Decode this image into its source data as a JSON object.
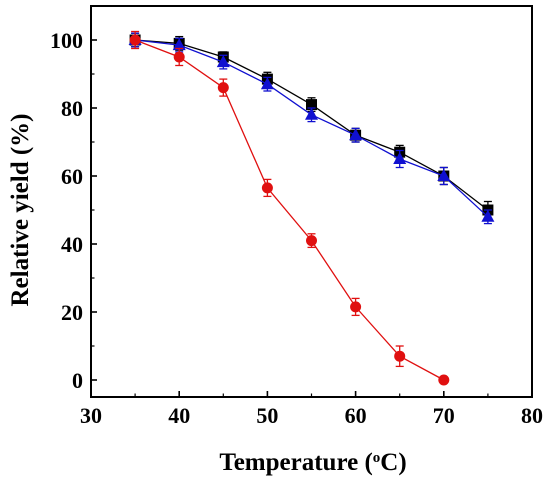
{
  "chart_data": {
    "type": "line",
    "xlabel": {
      "prefix": "Temperature (",
      "sup": "o",
      "suffix": "C)"
    },
    "ylabel": "Relative yield (%)",
    "xlim": [
      30,
      80
    ],
    "ylim": [
      -5,
      110
    ],
    "xticks": [
      30,
      40,
      50,
      60,
      70,
      80
    ],
    "yticks": [
      0,
      20,
      40,
      60,
      80,
      100
    ],
    "grid": false,
    "series": [
      {
        "marker": "square",
        "color": "#000000",
        "x": [
          35,
          40,
          45,
          50,
          55,
          60,
          65,
          70,
          75
        ],
        "y": [
          100,
          99,
          95,
          88.5,
          81,
          72,
          67,
          60,
          50
        ],
        "err": [
          2,
          2,
          1.5,
          2,
          2,
          2,
          2,
          2.5,
          2.5
        ]
      },
      {
        "marker": "triangle",
        "color": "#1010d0",
        "x": [
          35,
          40,
          45,
          50,
          55,
          60,
          65,
          70,
          75
        ],
        "y": [
          100,
          98.5,
          93.5,
          87,
          78,
          72,
          65,
          60,
          48
        ],
        "err": [
          2,
          2,
          2,
          2,
          2,
          2,
          2.5,
          2.5,
          2
        ]
      },
      {
        "marker": "circle",
        "color": "#e01010",
        "x": [
          35,
          40,
          45,
          50,
          55,
          60,
          65,
          70
        ],
        "y": [
          100,
          95,
          86,
          56.5,
          41,
          21.5,
          7,
          0
        ],
        "err": [
          2.5,
          2.5,
          2.5,
          2.5,
          2,
          2.5,
          3,
          0
        ]
      }
    ]
  }
}
